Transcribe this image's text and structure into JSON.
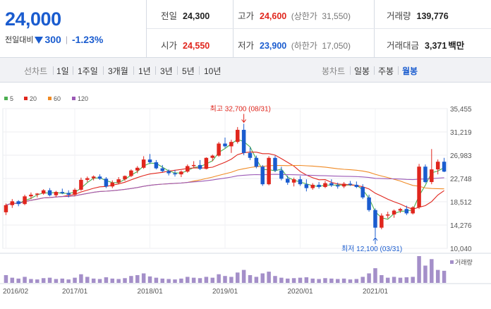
{
  "summary": {
    "price": "24,000",
    "change_label": "전일대비",
    "change_value": "300",
    "change_pct": "-1.23%",
    "prev_close_label": "전일",
    "prev_close": "24,300",
    "open_label": "시가",
    "open": "24,550",
    "high_label": "고가",
    "high": "24,600",
    "upper_limit_label": "(상한가",
    "upper_limit": "31,550)",
    "low_label": "저가",
    "low": "23,900",
    "lower_limit_label": "(하한가",
    "lower_limit": "17,050)",
    "volume_label": "거래량",
    "volume": "139,776",
    "amount_label": "거래대금",
    "amount": "3,371",
    "amount_unit": "백만",
    "colors": {
      "up": "#e0261d",
      "down": "#1a5ccf"
    }
  },
  "toolbar": {
    "line_chart_label": "선차트",
    "periods": [
      "1일",
      "1주일",
      "3개월",
      "1년",
      "3년",
      "5년",
      "10년"
    ],
    "candle_label": "봉차트",
    "candle_types": [
      "일봉",
      "주봉",
      "월봉"
    ],
    "active_candle": "월봉"
  },
  "chart_data": {
    "type": "candlestick",
    "legend": [
      {
        "name": "5",
        "color": "#4caf50"
      },
      {
        "name": "20",
        "color": "#e0261d"
      },
      {
        "name": "60",
        "color": "#f08a24"
      },
      {
        "name": "120",
        "color": "#9b59b6"
      }
    ],
    "y_ticks": [
      "35,455",
      "31,219",
      "26,983",
      "22,748",
      "18,512",
      "14,276",
      "10,040"
    ],
    "ylim": [
      10040,
      35455
    ],
    "x_ticks": [
      "2016/02",
      "2017/01",
      "2018/01",
      "2019/01",
      "2020/01",
      "2021/01"
    ],
    "volume_label": "거래량",
    "annotations": {
      "high": "최고 32,700 (08/31)",
      "low": "최저 12,100 (03/31)"
    },
    "candles": [
      [
        16600,
        18200,
        16100,
        17900
      ],
      [
        17900,
        19000,
        17400,
        18600
      ],
      [
        18600,
        18800,
        17700,
        18100
      ],
      [
        18100,
        19800,
        17900,
        19500
      ],
      [
        19500,
        20200,
        19000,
        19800
      ],
      [
        19800,
        20100,
        19300,
        20000
      ],
      [
        20000,
        20800,
        19800,
        20600
      ],
      [
        20600,
        21000,
        19500,
        19700
      ],
      [
        19700,
        20500,
        19400,
        20300
      ],
      [
        20300,
        20900,
        19900,
        20100
      ],
      [
        20100,
        20600,
        19300,
        19800
      ],
      [
        19800,
        21000,
        19500,
        20700
      ],
      [
        20700,
        22900,
        20500,
        22500
      ],
      [
        22500,
        23100,
        22100,
        22800
      ],
      [
        22800,
        23300,
        22400,
        23100
      ],
      [
        23100,
        23500,
        22500,
        22700
      ],
      [
        22700,
        23000,
        21000,
        21300
      ],
      [
        21300,
        22400,
        21000,
        22000
      ],
      [
        22000,
        23000,
        21700,
        22600
      ],
      [
        22600,
        23300,
        22300,
        23200
      ],
      [
        23200,
        24400,
        23000,
        24200
      ],
      [
        24200,
        25000,
        23700,
        24700
      ],
      [
        24700,
        26800,
        24500,
        26200
      ],
      [
        26200,
        27200,
        25400,
        25700
      ],
      [
        25700,
        26100,
        24400,
        24600
      ],
      [
        24600,
        25200,
        23900,
        24100
      ],
      [
        24100,
        24400,
        23300,
        23700
      ],
      [
        23700,
        24300,
        23100,
        23500
      ],
      [
        23500,
        24200,
        23000,
        24000
      ],
      [
        24000,
        25300,
        23800,
        25000
      ],
      [
        25000,
        25900,
        24600,
        25200
      ],
      [
        25200,
        26100,
        24300,
        24500
      ],
      [
        24500,
        26600,
        24400,
        26500
      ],
      [
        26500,
        27100,
        25900,
        26900
      ],
      [
        26900,
        29400,
        26700,
        29100
      ],
      [
        29100,
        30200,
        28300,
        28600
      ],
      [
        28600,
        29800,
        27400,
        29400
      ],
      [
        29400,
        32100,
        29100,
        31600
      ],
      [
        31600,
        32700,
        27000,
        27400
      ],
      [
        27400,
        28400,
        26100,
        26500
      ],
      [
        26500,
        26900,
        24600,
        24900
      ],
      [
        24900,
        25200,
        21400,
        21700
      ],
      [
        21700,
        26800,
        21500,
        26500
      ],
      [
        26500,
        26900,
        23900,
        24200
      ],
      [
        24200,
        24900,
        22400,
        22700
      ],
      [
        22700,
        23300,
        21600,
        22000
      ],
      [
        22000,
        22900,
        21300,
        22600
      ],
      [
        22600,
        23200,
        21400,
        21700
      ],
      [
        21700,
        22600,
        20400,
        21000
      ],
      [
        21000,
        21900,
        20700,
        21600
      ],
      [
        21600,
        22100,
        20900,
        21200
      ],
      [
        21200,
        22300,
        21000,
        21900
      ],
      [
        21900,
        22600,
        21200,
        21500
      ],
      [
        21500,
        22000,
        20900,
        21300
      ],
      [
        21300,
        22100,
        21000,
        21800
      ],
      [
        21800,
        22300,
        21400,
        21600
      ],
      [
        21600,
        22200,
        21000,
        21200
      ],
      [
        21200,
        21700,
        19000,
        19300
      ],
      [
        19300,
        19800,
        16700,
        17000
      ],
      [
        17000,
        17300,
        12100,
        13800
      ],
      [
        13800,
        16400,
        13500,
        16000
      ],
      [
        16000,
        16700,
        15500,
        16200
      ],
      [
        16200,
        17100,
        15600,
        16900
      ],
      [
        16900,
        17400,
        16500,
        17200
      ],
      [
        17200,
        17800,
        16100,
        16400
      ],
      [
        16400,
        17700,
        16200,
        17500
      ],
      [
        17500,
        25400,
        17200,
        24900
      ],
      [
        24900,
        25300,
        21900,
        22100
      ],
      [
        22100,
        28100,
        21700,
        24400
      ],
      [
        24400,
        26200,
        23500,
        25800
      ],
      [
        25800,
        26500,
        23900,
        24000
      ]
    ],
    "volumes": [
      18,
      12,
      10,
      14,
      9,
      8,
      11,
      12,
      9,
      10,
      8,
      12,
      20,
      14,
      10,
      9,
      13,
      10,
      9,
      11,
      16,
      18,
      22,
      15,
      12,
      10,
      9,
      8,
      10,
      14,
      12,
      11,
      14,
      12,
      20,
      16,
      14,
      24,
      30,
      18,
      14,
      22,
      26,
      16,
      12,
      10,
      11,
      12,
      13,
      10,
      9,
      11,
      10,
      9,
      10,
      8,
      9,
      14,
      22,
      34,
      18,
      12,
      14,
      12,
      13,
      14,
      62,
      40,
      55,
      30,
      28
    ]
  }
}
